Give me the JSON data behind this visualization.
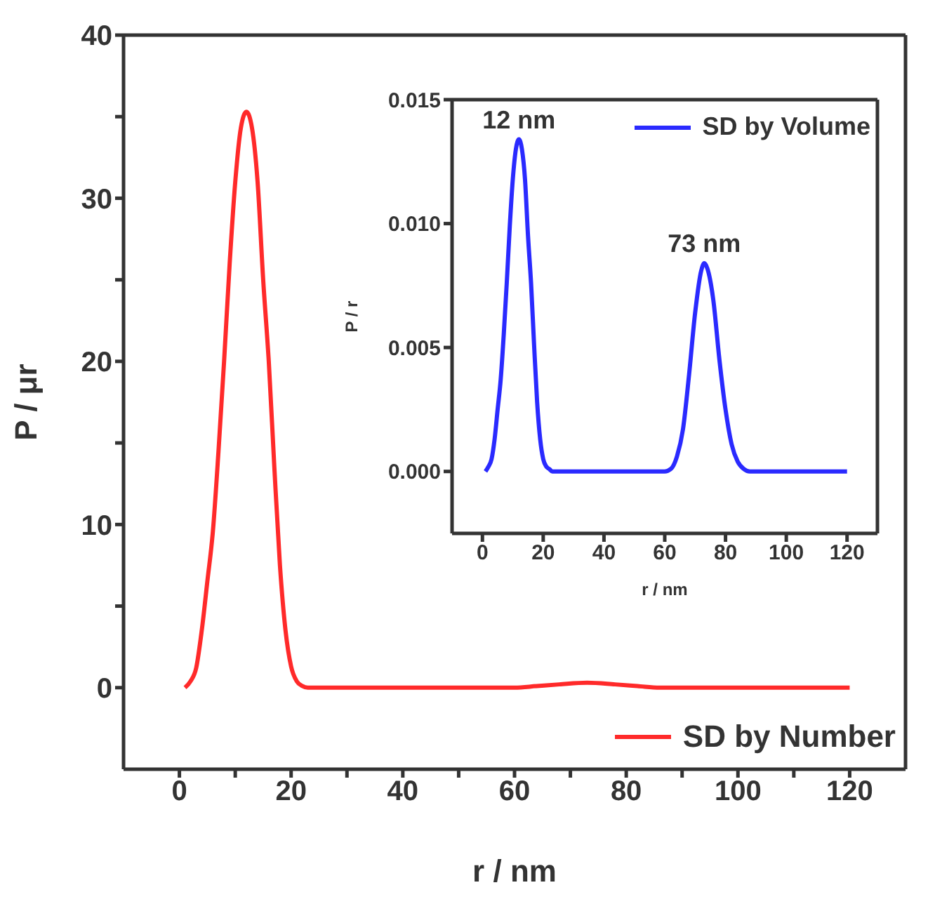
{
  "chart_data": [
    {
      "type": "line",
      "xlabel": "r / nm",
      "ylabel": "P / μr",
      "x": [
        1,
        2,
        3,
        4,
        5,
        6,
        7,
        8,
        9,
        10,
        11,
        12,
        13,
        14,
        15,
        16,
        17,
        18,
        19,
        20,
        21,
        22,
        23,
        40,
        60,
        64,
        68,
        73,
        78,
        82,
        86,
        100,
        120
      ],
      "series": [
        {
          "name": "SD by Number",
          "color": "#ff2a2a",
          "values": [
            0,
            0.4,
            1.2,
            3.5,
            6.5,
            9.6,
            14.5,
            20,
            26,
            31,
            34.3,
            35.3,
            34.3,
            31,
            25,
            20,
            13.5,
            7.5,
            3.5,
            1.3,
            0.4,
            0.1,
            0,
            0,
            0,
            0.1,
            0.2,
            0.3,
            0.2,
            0.1,
            0,
            0,
            0
          ]
        }
      ],
      "xlim": [
        -10,
        130
      ],
      "xticks": [
        0,
        {
          "value": 10,
          "label": null
        },
        20,
        {
          "value": 30,
          "label": null
        },
        40,
        {
          "value": 50,
          "label": null
        },
        60,
        {
          "value": 70,
          "label": null
        },
        80,
        {
          "value": 90,
          "label": null
        },
        100,
        {
          "value": 110,
          "label": null
        },
        120
      ],
      "ylim": [
        -5,
        40
      ],
      "yticks": [
        0,
        {
          "value": 5,
          "label": null
        },
        10,
        {
          "value": 15,
          "label": null
        },
        20,
        {
          "value": 25,
          "label": null
        },
        30,
        {
          "value": 35,
          "label": null
        },
        40
      ],
      "legend": "bottom right"
    },
    {
      "type": "line",
      "xlabel": "r / nm",
      "ylabel": "P / r",
      "x": [
        1,
        2,
        3,
        4,
        5,
        6,
        7,
        8,
        9,
        10,
        11,
        12,
        13,
        14,
        15,
        16,
        17,
        18,
        19,
        20,
        21,
        22,
        23,
        60,
        62,
        64,
        66,
        68,
        70,
        72,
        73,
        74,
        76,
        78,
        80,
        82,
        84,
        86,
        88,
        109,
        120
      ],
      "series": [
        {
          "name": "SD by Volume",
          "color": "#2a2aff",
          "values": [
            0,
            0.0002,
            0.0005,
            0.0013,
            0.0025,
            0.0037,
            0.0055,
            0.0076,
            0.0099,
            0.0118,
            0.013,
            0.0134,
            0.013,
            0.0118,
            0.0095,
            0.0076,
            0.0051,
            0.0028,
            0.0013,
            0.0005,
            0.0002,
            0.0001,
            0,
            0,
            0.0001,
            0.0006,
            0.0017,
            0.0039,
            0.0064,
            0.0081,
            0.0084,
            0.0082,
            0.0069,
            0.0045,
            0.0025,
            0.0011,
            0.0004,
            0.0001,
            0,
            0,
            0
          ]
        }
      ],
      "xlim": [
        -10,
        130
      ],
      "xticks": [
        0,
        20,
        40,
        60,
        80,
        100,
        120
      ],
      "ylim": [
        -0.0025,
        0.015
      ],
      "yticks": [
        {
          "value": 0,
          "label": "0.000"
        },
        {
          "value": 0.005,
          "label": "0.005"
        },
        {
          "value": 0.01,
          "label": "0.010"
        },
        {
          "value": 0.015,
          "label": "0.015"
        }
      ],
      "annotations": [
        {
          "text": "12 nm",
          "x": 12,
          "y": 0.0134
        },
        {
          "text": "73 nm",
          "x": 73,
          "y": 0.0084
        }
      ],
      "legend": "top right"
    }
  ]
}
